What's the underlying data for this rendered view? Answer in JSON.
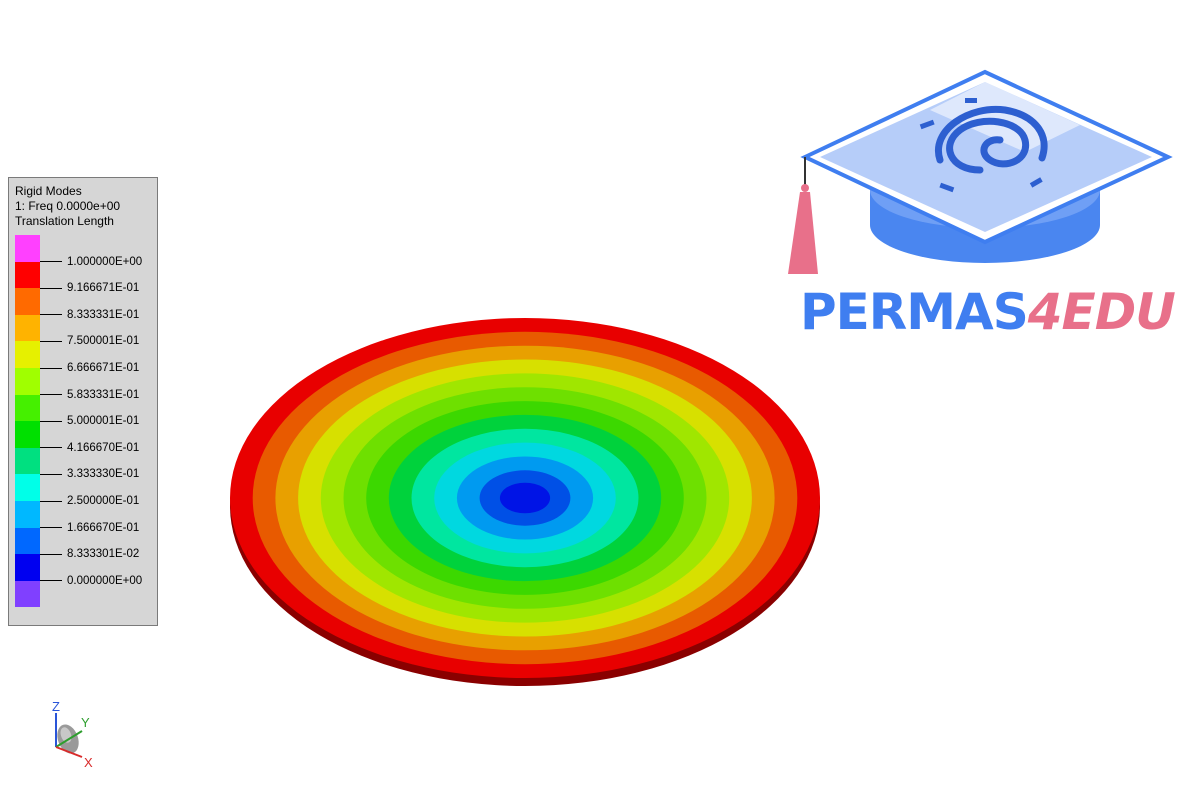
{
  "legend": {
    "title": "Rigid Modes",
    "subtitle": "1: Freq 0.0000e+00",
    "quantity": "Translation Length",
    "swatch_colors": [
      "#ff40ff",
      "#ff0000",
      "#ff6a00",
      "#ffb300",
      "#e6f000",
      "#a0ff00",
      "#45f000",
      "#00e000",
      "#00e080",
      "#00ffe8",
      "#00b8ff",
      "#0068ff",
      "#0000f0",
      "#8040ff"
    ],
    "levels": [
      "1.000000E+00",
      "9.166671E-01",
      "8.333331E-01",
      "7.500001E-01",
      "6.666671E-01",
      "5.833331E-01",
      "5.000001E-01",
      "4.166670E-01",
      "3.333330E-01",
      "2.500000E-01",
      "1.666670E-01",
      "8.333301E-02",
      "0.000000E+00"
    ]
  },
  "model": {
    "band_colors": [
      "#e80000",
      "#e85a00",
      "#e8a000",
      "#d7e000",
      "#a0e600",
      "#6ee000",
      "#3cd800",
      "#00d23c",
      "#00e6a0",
      "#00d8e0",
      "#009af0",
      "#0050e6",
      "#0014e6"
    ],
    "edge_color": "#8a0000"
  },
  "branding": {
    "logo_part1": "PERMAS",
    "logo_part2": "4EDU",
    "primary_color": "#3f7ef0",
    "accent_color": "#e8708a"
  },
  "triad": {
    "z_label": "Z",
    "y_label": "Y",
    "x_label": "X"
  }
}
